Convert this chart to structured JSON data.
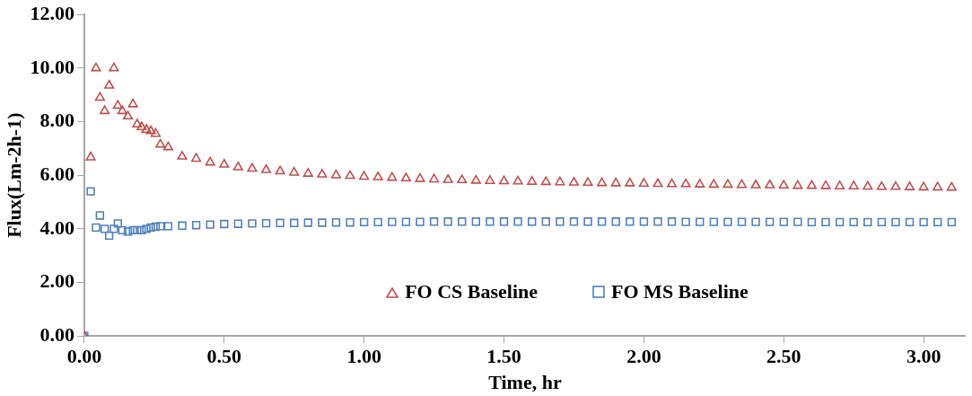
{
  "chart_data": {
    "type": "scatter",
    "xlabel": "Time, hr",
    "ylabel": "Flux(Lm-2h-1)",
    "xlim": [
      0,
      3.15
    ],
    "ylim": [
      0,
      12
    ],
    "xticks": [
      {
        "value": 0,
        "label": "0.00"
      },
      {
        "value": 0.5,
        "label": "0.50"
      },
      {
        "value": 1,
        "label": "1.00"
      },
      {
        "value": 1.5,
        "label": "1.50"
      },
      {
        "value": 2,
        "label": "2.00"
      },
      {
        "value": 2.5,
        "label": "2.50"
      },
      {
        "value": 3,
        "label": "3.00"
      }
    ],
    "yticks": [
      {
        "value": 0,
        "label": "0.00"
      },
      {
        "value": 2,
        "label": "2.00"
      },
      {
        "value": 4,
        "label": "4.00"
      },
      {
        "value": 6,
        "label": "6.00"
      },
      {
        "value": 8,
        "label": "8.00"
      },
      {
        "value": 10,
        "label": "10.00"
      },
      {
        "value": 12,
        "label": "12.00"
      }
    ],
    "grid": false,
    "legend": "bottom",
    "series": [
      {
        "name": "FO CS Baseline",
        "color": "#c0504d",
        "marker": "triangle",
        "x": [
          0,
          0.023,
          0.042,
          0.056,
          0.073,
          0.089,
          0.106,
          0.12,
          0.136,
          0.156,
          0.174,
          0.189,
          0.205,
          0.222,
          0.238,
          0.255,
          0.272,
          0.3,
          0.35,
          0.4,
          0.45,
          0.5,
          0.55,
          0.6,
          0.65,
          0.7,
          0.75,
          0.8,
          0.85,
          0.9,
          0.95,
          1,
          1.05,
          1.1,
          1.15,
          1.2,
          1.25,
          1.3,
          1.35,
          1.4,
          1.45,
          1.5,
          1.55,
          1.6,
          1.65,
          1.7,
          1.75,
          1.8,
          1.85,
          1.9,
          1.95,
          2,
          2.05,
          2.1,
          2.15,
          2.2,
          2.25,
          2.3,
          2.35,
          2.4,
          2.45,
          2.5,
          2.55,
          2.6,
          2.65,
          2.7,
          2.75,
          2.8,
          2.85,
          2.9,
          2.95,
          3,
          3.05,
          3.1
        ],
        "values": [
          0,
          6.67,
          10,
          8.9,
          8.4,
          9.35,
          10,
          8.6,
          8.4,
          8.2,
          8.65,
          7.9,
          7.8,
          7.7,
          7.65,
          7.55,
          7.15,
          7.05,
          6.7,
          6.62,
          6.48,
          6.4,
          6.3,
          6.25,
          6.2,
          6.15,
          6.1,
          6.06,
          6.03,
          6,
          5.98,
          5.95,
          5.93,
          5.91,
          5.89,
          5.87,
          5.85,
          5.83,
          5.82,
          5.8,
          5.79,
          5.78,
          5.77,
          5.76,
          5.75,
          5.74,
          5.73,
          5.72,
          5.71,
          5.7,
          5.7,
          5.69,
          5.68,
          5.67,
          5.67,
          5.66,
          5.65,
          5.65,
          5.64,
          5.63,
          5.63,
          5.62,
          5.61,
          5.61,
          5.6,
          5.59,
          5.59,
          5.58,
          5.57,
          5.57,
          5.56,
          5.55,
          5.55,
          5.54
        ]
      },
      {
        "name": "FO MS Baseline",
        "color": "#4f81bd",
        "marker": "square",
        "x": [
          0,
          0.023,
          0.042,
          0.056,
          0.073,
          0.089,
          0.106,
          0.12,
          0.136,
          0.156,
          0.174,
          0.189,
          0.205,
          0.222,
          0.238,
          0.255,
          0.272,
          0.3,
          0.35,
          0.4,
          0.45,
          0.5,
          0.55,
          0.6,
          0.65,
          0.7,
          0.75,
          0.8,
          0.85,
          0.9,
          0.95,
          1,
          1.05,
          1.1,
          1.15,
          1.2,
          1.25,
          1.3,
          1.35,
          1.4,
          1.45,
          1.5,
          1.55,
          1.6,
          1.65,
          1.7,
          1.75,
          1.8,
          1.85,
          1.9,
          1.95,
          2,
          2.05,
          2.1,
          2.15,
          2.2,
          2.25,
          2.3,
          2.35,
          2.4,
          2.45,
          2.5,
          2.55,
          2.6,
          2.65,
          2.7,
          2.75,
          2.8,
          2.85,
          2.9,
          2.95,
          3,
          3.05,
          3.1
        ],
        "values": [
          0,
          5.4,
          4.05,
          4.5,
          4.0,
          3.75,
          4.0,
          4.2,
          3.95,
          3.9,
          3.95,
          3.95,
          3.95,
          4.0,
          4.05,
          4.08,
          4.1,
          4.1,
          4.12,
          4.14,
          4.16,
          4.18,
          4.19,
          4.2,
          4.21,
          4.22,
          4.22,
          4.23,
          4.23,
          4.24,
          4.24,
          4.25,
          4.25,
          4.26,
          4.26,
          4.26,
          4.27,
          4.27,
          4.27,
          4.27,
          4.27,
          4.27,
          4.27,
          4.27,
          4.27,
          4.27,
          4.27,
          4.27,
          4.27,
          4.27,
          4.27,
          4.27,
          4.27,
          4.27,
          4.26,
          4.26,
          4.26,
          4.26,
          4.26,
          4.26,
          4.26,
          4.26,
          4.26,
          4.25,
          4.25,
          4.25,
          4.25,
          4.25,
          4.25,
          4.25,
          4.25,
          4.25,
          4.25,
          4.25
        ]
      }
    ]
  }
}
